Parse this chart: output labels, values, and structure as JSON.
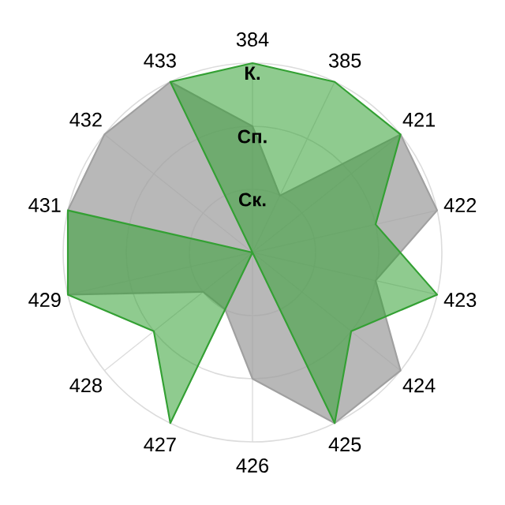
{
  "chart_data": {
    "type": "radar",
    "categories": [
      "384",
      "385",
      "421",
      "422",
      "423",
      "424",
      "425",
      "426",
      "427",
      "428",
      "429",
      "431",
      "432",
      "433"
    ],
    "ylim": [
      0,
      3
    ],
    "yticks": [
      {
        "value": 1,
        "label": "Ск."
      },
      {
        "value": 2,
        "label": "Сп."
      },
      {
        "value": 3,
        "label": "К."
      }
    ],
    "grid": true,
    "series": [
      {
        "color": "#a0a0a0",
        "values": [
          2,
          1,
          3,
          3,
          2,
          3,
          3,
          2,
          1,
          1,
          3,
          3,
          3,
          3
        ]
      },
      {
        "color": "#33a033",
        "values": [
          3,
          3,
          3,
          2,
          3,
          2,
          3,
          0,
          3,
          2,
          3,
          3,
          0,
          3
        ]
      }
    ]
  }
}
